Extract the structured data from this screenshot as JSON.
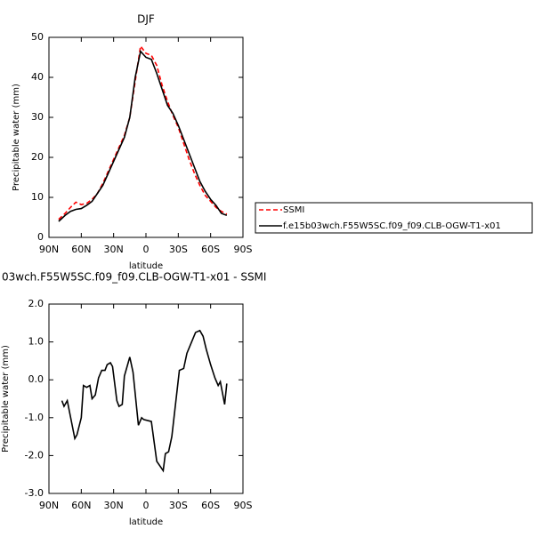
{
  "chart_data": [
    {
      "type": "line",
      "title": "DJF",
      "xlabel": "latitude",
      "ylabel": "Precipitable water (mm)",
      "xlim": [
        90,
        -90
      ],
      "xticks": [
        {
          "value": 90,
          "label": "90N"
        },
        {
          "value": 60,
          "label": "60N"
        },
        {
          "value": 30,
          "label": "30N"
        },
        0,
        {
          "value": -30,
          "label": "30S"
        },
        {
          "value": -60,
          "label": "60S"
        },
        {
          "value": -90,
          "label": "90S"
        }
      ],
      "ylim": [
        0,
        50
      ],
      "yticks": [
        0,
        10,
        20,
        30,
        40,
        50
      ],
      "x": [
        81,
        75,
        70,
        65,
        60,
        55,
        50,
        45,
        40,
        35,
        30,
        25,
        20,
        15,
        10,
        5,
        0,
        -5,
        -10,
        -15,
        -20,
        -25,
        -30,
        -35,
        -40,
        -45,
        -50,
        -55,
        -60,
        -65,
        -70,
        -75
      ],
      "series": [
        {
          "name": "SSMI",
          "color": "#ff0000",
          "dash": true,
          "values": [
            4.5,
            6,
            7.5,
            8.8,
            8.2,
            8.5,
            9.5,
            11,
            13.5,
            16.5,
            19.5,
            22.5,
            25.5,
            30,
            39,
            47.8,
            46,
            45.5,
            43,
            38,
            34,
            30.5,
            27.5,
            23.5,
            19.5,
            16,
            13,
            10.5,
            9,
            7.5,
            6.5,
            5.8
          ]
        },
        {
          "name": "f.e15b03wch.F55W5SC.f09_f09.CLB-OGW-T1-x01",
          "color": "#000000",
          "dash": false,
          "values": [
            4,
            5.5,
            6.5,
            7,
            7.2,
            8,
            9,
            11,
            13,
            16,
            19,
            22,
            25,
            30,
            40,
            46.5,
            45,
            44.5,
            41,
            37,
            33,
            31,
            28,
            24.5,
            21,
            17.5,
            14,
            11.5,
            9.5,
            8,
            6,
            5.5
          ]
        }
      ]
    },
    {
      "type": "line",
      "title": "03wch.F55W5SC.f09_f09.CLB-OGW-T1-x01 - SSMI",
      "xlabel": "latitude",
      "ylabel": "Precipitable water (mm)",
      "xlim": [
        90,
        -90
      ],
      "xticks": [
        {
          "value": 90,
          "label": "90N"
        },
        {
          "value": 60,
          "label": "60N"
        },
        {
          "value": 30,
          "label": "30N"
        },
        0,
        {
          "value": -30,
          "label": "30S"
        },
        {
          "value": -60,
          "label": "60S"
        },
        {
          "value": -90,
          "label": "90S"
        }
      ],
      "ylim": [
        -3,
        2
      ],
      "yticks": [
        {
          "value": -3,
          "label": "-3.0"
        },
        {
          "value": -2,
          "label": "-2.0"
        },
        {
          "value": -1,
          "label": "-1.0"
        },
        {
          "value": 0,
          "label": "0.0"
        },
        {
          "value": 1,
          "label": "1.0"
        },
        {
          "value": 2,
          "label": "2.0"
        }
      ],
      "x": [
        78,
        76,
        73,
        66,
        64,
        60,
        58,
        55,
        52,
        50,
        47,
        44,
        41,
        38,
        36,
        33,
        31,
        27,
        25,
        22,
        20,
        15,
        12,
        7,
        4,
        2,
        -5,
        -10,
        -16,
        -18,
        -21,
        -24,
        -28,
        -31,
        -35,
        -38,
        -46,
        -50,
        -53,
        -56,
        -60,
        -64,
        -67,
        -69,
        -73,
        -75
      ],
      "series": [
        {
          "color": "#000000",
          "dash": false,
          "values": [
            -0.55,
            -0.7,
            -0.55,
            -1.55,
            -1.45,
            -1.0,
            -0.15,
            -0.2,
            -0.15,
            -0.5,
            -0.4,
            0.05,
            0.25,
            0.25,
            0.4,
            0.45,
            0.35,
            -0.55,
            -0.7,
            -0.65,
            0.1,
            0.6,
            0.2,
            -1.2,
            -1.0,
            -1.05,
            -1.1,
            -2.15,
            -2.4,
            -1.95,
            -1.9,
            -1.5,
            -0.5,
            0.25,
            0.3,
            0.7,
            1.25,
            1.3,
            1.15,
            0.8,
            0.4,
            0.05,
            -0.15,
            -0.05,
            -0.65,
            -0.1
          ]
        }
      ]
    }
  ]
}
